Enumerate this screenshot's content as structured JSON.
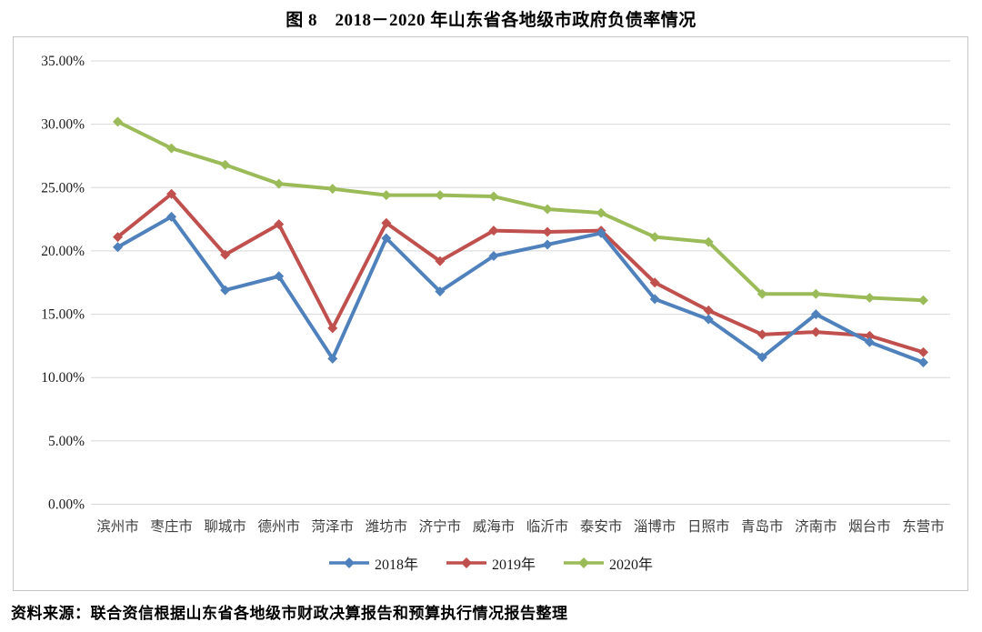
{
  "title": "图 8　2018－2020 年山东省各地级市政府负债率情况",
  "source": "资料来源：联合资信根据山东省各地级市财政决算报告和预算执行情况报告整理",
  "chart_data": {
    "type": "line",
    "title": "图 8　2018－2020 年山东省各地级市政府负债率情况",
    "xlabel": "",
    "ylabel": "",
    "ylim": [
      0,
      35
    ],
    "y_tick_step": 5,
    "grid": true,
    "legend_position": "bottom",
    "marker": "diamond",
    "y_tick_labels": [
      "35.00%",
      "30.00%",
      "25.00%",
      "20.00%",
      "15.00%",
      "10.00%",
      "5.00%",
      "0.00%"
    ],
    "categories": [
      "滨州市",
      "枣庄市",
      "聊城市",
      "德州市",
      "菏泽市",
      "潍坊市",
      "济宁市",
      "威海市",
      "临沂市",
      "泰安市",
      "淄博市",
      "日照市",
      "青岛市",
      "济南市",
      "烟台市",
      "东营市"
    ],
    "series": [
      {
        "name": "2018年",
        "color": "#4F81BD",
        "values": [
          20.3,
          22.7,
          16.9,
          18.0,
          11.5,
          21.0,
          16.8,
          19.6,
          20.5,
          21.4,
          16.2,
          14.6,
          11.6,
          15.0,
          12.8,
          11.2
        ]
      },
      {
        "name": "2019年",
        "color": "#C0504D",
        "values": [
          21.1,
          24.5,
          19.7,
          22.1,
          13.9,
          22.2,
          19.2,
          21.6,
          21.5,
          21.6,
          17.5,
          15.3,
          13.4,
          13.6,
          13.3,
          12.0
        ]
      },
      {
        "name": "2020年",
        "color": "#9BBB59",
        "values": [
          30.2,
          28.1,
          26.8,
          25.3,
          24.9,
          24.4,
          24.4,
          24.3,
          23.3,
          23.0,
          21.1,
          20.7,
          16.6,
          16.6,
          16.3,
          16.1
        ]
      }
    ],
    "colors": {
      "gridline": "#d8d8d8",
      "frame_border": "#c6c6c6",
      "axis_text": "#3f3f3f"
    }
  }
}
